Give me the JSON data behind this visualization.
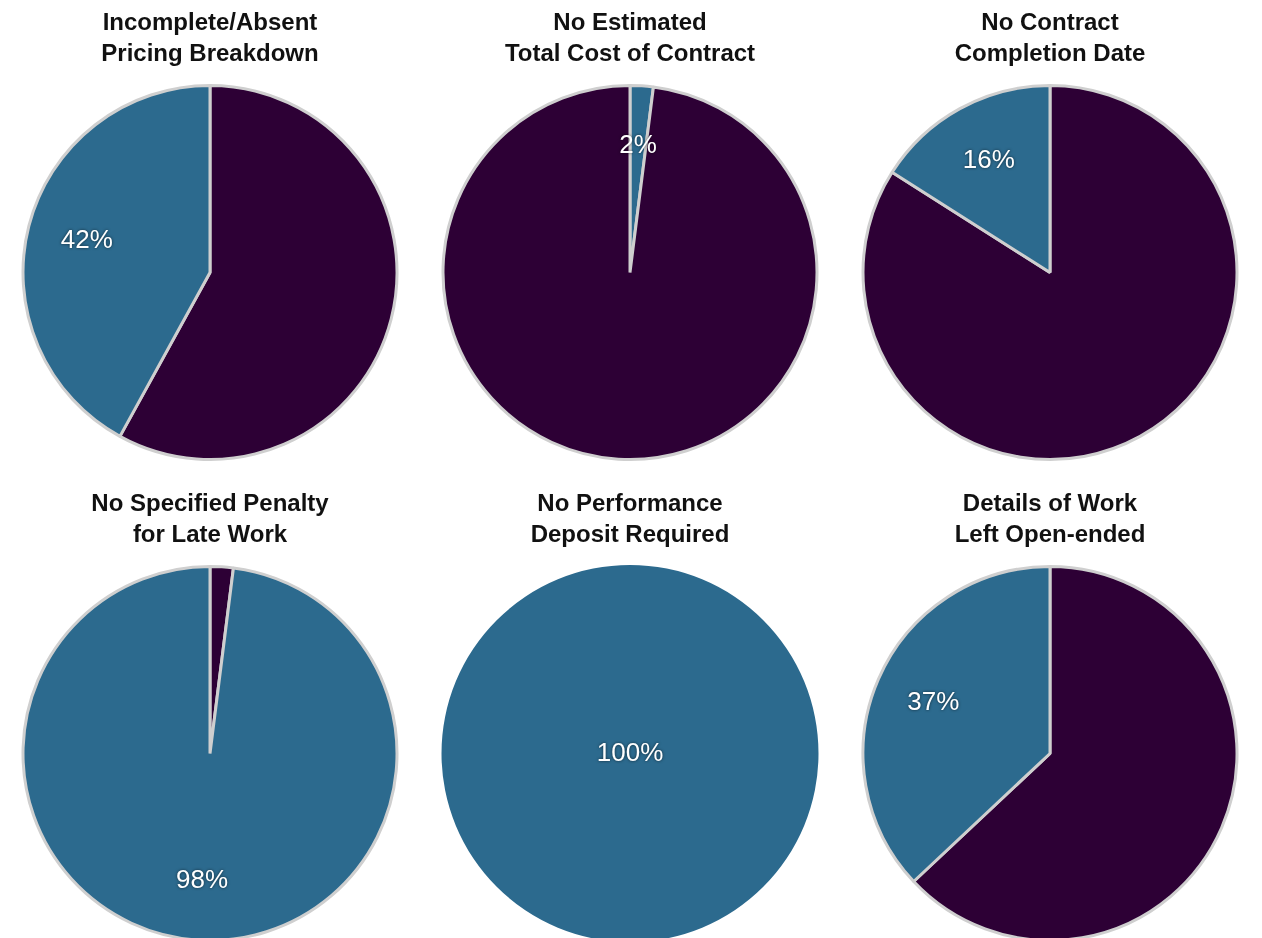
{
  "chart_data": [
    {
      "type": "pie",
      "title": "Incomplete/Absent\nPricing Breakdown",
      "categories": [
        null,
        null
      ],
      "values": [
        58,
        42
      ],
      "colors": [
        "#2d0035",
        "#2c6a8e"
      ],
      "value_labels": [
        null,
        "42%"
      ],
      "legend": false
    },
    {
      "type": "pie",
      "title": "No Estimated\nTotal Cost of Contract",
      "categories": [
        null,
        null
      ],
      "values": [
        2,
        98
      ],
      "colors": [
        "#2c6a8e",
        "#2d0035"
      ],
      "value_labels": [
        "2%",
        null
      ],
      "legend": false
    },
    {
      "type": "pie",
      "title": "No Contract\nCompletion Date",
      "categories": [
        null,
        null
      ],
      "values": [
        84,
        16
      ],
      "colors": [
        "#2d0035",
        "#2c6a8e"
      ],
      "value_labels": [
        null,
        "16%"
      ],
      "legend": false
    },
    {
      "type": "pie",
      "title": "No Specified Penalty\nfor Late Work",
      "categories": [
        null,
        null
      ],
      "values": [
        2,
        98
      ],
      "colors": [
        "#2d0035",
        "#2c6a8e"
      ],
      "value_labels": [
        null,
        "98%"
      ],
      "legend": false
    },
    {
      "type": "pie",
      "title": "No Performance\nDeposit Required",
      "categories": [
        null
      ],
      "values": [
        100
      ],
      "colors": [
        "#2c6a8e"
      ],
      "value_labels": [
        "100%"
      ],
      "legend": false
    },
    {
      "type": "pie",
      "title": "Details of Work\nLeft Open-ended",
      "categories": [
        null,
        null
      ],
      "values": [
        63,
        37
      ],
      "colors": [
        "#2d0035",
        "#2c6a8e"
      ],
      "value_labels": [
        null,
        "37%"
      ],
      "legend": false
    }
  ]
}
